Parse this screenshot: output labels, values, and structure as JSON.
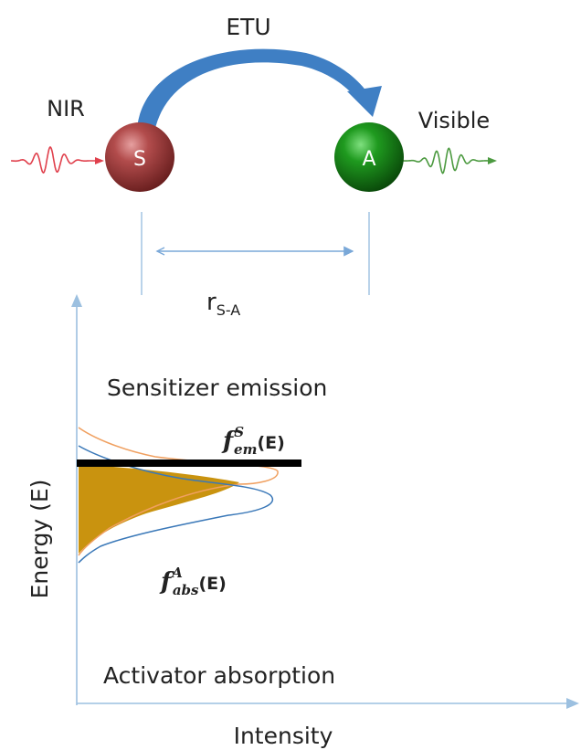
{
  "top_diagram": {
    "process_label": "ETU",
    "input_label": "NIR",
    "output_label": "Visible",
    "sensitizer_letter": "S",
    "activator_letter": "A",
    "distance_label": {
      "base": "r",
      "subscript": "S-A"
    }
  },
  "plot": {
    "y_axis_label": "Energy (E)",
    "x_axis_label": "Intensity",
    "sensitizer_caption": "Sensitizer emission",
    "activator_caption": "Activator absorption",
    "emission_fn": {
      "base": "f",
      "sup": "S",
      "sub": "em",
      "arg": "(E)"
    },
    "absorption_fn": {
      "base": "f",
      "sup": "A",
      "sub": "abs",
      "arg": "(E)"
    }
  },
  "colors": {
    "nir_wave": "#e0404c",
    "visible_wave": "#4c9a40",
    "etu_arrow": "#3f7fc4",
    "sensitizer_sphere": "#9b3a3a",
    "activator_sphere": "#1f8a1f",
    "emission_curve": "#f0a060",
    "absorption_curve": "#3a78b8",
    "overlap_fill": "#c9930f",
    "threshold_bar": "#000000",
    "axis": "#9cc0e0"
  }
}
